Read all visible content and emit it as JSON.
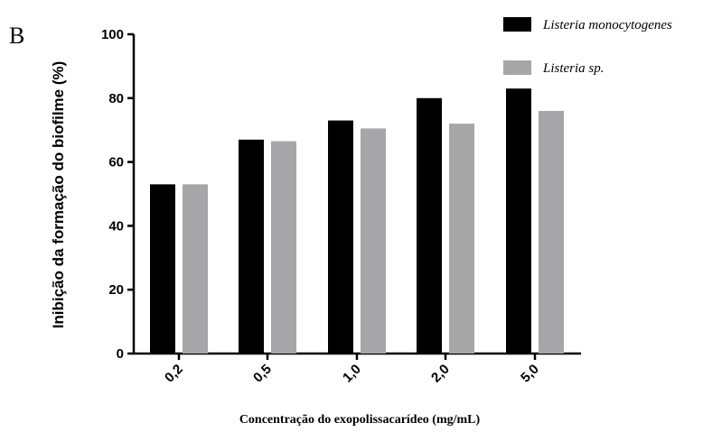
{
  "panel_label": "B",
  "chart_data": {
    "type": "bar",
    "categories": [
      "0,2",
      "0,5",
      "1,0",
      "2,0",
      "5,0"
    ],
    "series": [
      {
        "name": "Listeria monocytogenes",
        "color": "#000000",
        "values": [
          53,
          67,
          73,
          80,
          83
        ]
      },
      {
        "name": "Listeria sp.",
        "color": "#a6a6a8",
        "values": [
          53,
          66.5,
          70.5,
          72,
          76
        ]
      }
    ],
    "xlabel": "Concentração do exopolissacarídeo (mg/mL)",
    "ylabel": "Inibição da formação do biofilme (%)",
    "ylim": [
      0,
      100
    ],
    "yticks": [
      0,
      20,
      40,
      60,
      80,
      100
    ],
    "legend_position": "top-right",
    "grid": false
  }
}
